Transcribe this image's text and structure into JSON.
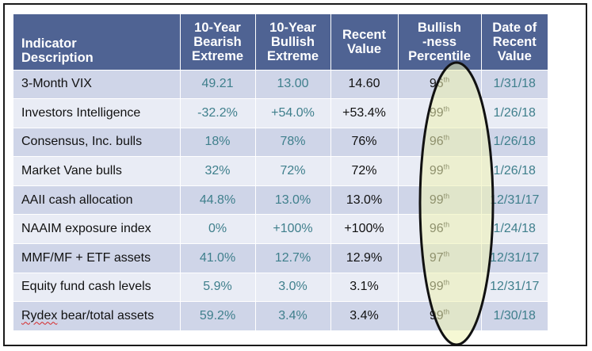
{
  "headers": {
    "description": [
      "Indicator",
      "Description"
    ],
    "bearish": [
      "10-Year",
      "Bearish",
      "Extreme"
    ],
    "bullish": [
      "10-Year",
      "Bullish",
      "Extreme"
    ],
    "recent": [
      "Recent",
      "Value"
    ],
    "percentile": [
      "Bullish",
      "-ness",
      "Percentile"
    ],
    "date": [
      "Date of",
      "Recent",
      "Value"
    ]
  },
  "rows": [
    {
      "desc_a": "3-Month VIX",
      "desc_b": "",
      "bearish": "49.21",
      "bullish": "13.00",
      "recent": "14.60",
      "pct": "96",
      "sup": "th",
      "date": "1/31/18"
    },
    {
      "desc_a": "Investors Intelligence",
      "desc_b": "",
      "bearish": "-32.2%",
      "bullish": "+54.0%",
      "recent": "+53.4%",
      "pct": "99",
      "sup": "th",
      "date": "1/26/18"
    },
    {
      "desc_a": "Consensus, Inc. bulls",
      "desc_b": "",
      "bearish": "18%",
      "bullish": "78%",
      "recent": "76%",
      "pct": "96",
      "sup": "th",
      "date": "1/26/18"
    },
    {
      "desc_a": "Market Vane bulls",
      "desc_b": "",
      "bearish": "32%",
      "bullish": "72%",
      "recent": "72%",
      "pct": "99",
      "sup": "th",
      "date": "1/26/18"
    },
    {
      "desc_a": "AAII cash allocation",
      "desc_b": "",
      "bearish": "44.8%",
      "bullish": "13.0%",
      "recent": "13.0%",
      "pct": "99",
      "sup": "th",
      "date": "12/31/17"
    },
    {
      "desc_a": "NAAIM exposure index",
      "desc_b": "",
      "bearish": "0%",
      "bullish": "+100%",
      "recent": "+100%",
      "pct": "96",
      "sup": "th",
      "date": "1/24/18"
    },
    {
      "desc_a": "MMF/MF + ETF assets",
      "desc_b": "",
      "bearish": "41.0%",
      "bullish": "12.7%",
      "recent": "12.9%",
      "pct": "97",
      "sup": "th",
      "date": "12/31/17"
    },
    {
      "desc_a": "Equity fund cash levels",
      "desc_b": "",
      "bearish": "5.9%",
      "bullish": "3.0%",
      "recent": "3.1%",
      "pct": "99",
      "sup": "th",
      "date": "12/31/17"
    },
    {
      "desc_a": "Rydex",
      "desc_b": " bear/total assets",
      "bearish": "59.2%",
      "bullish": "3.4%",
      "recent": "3.4%",
      "pct": "99",
      "sup": "th",
      "date": "1/30/18"
    }
  ],
  "colors": {
    "header_bg": "#4f6393",
    "row_odd": "#cfd5e8",
    "row_even": "#e9ecf5",
    "muted_text": "#3f7f8c",
    "highlight_fill": "#eef2b0",
    "highlight_stroke": "#111111"
  }
}
